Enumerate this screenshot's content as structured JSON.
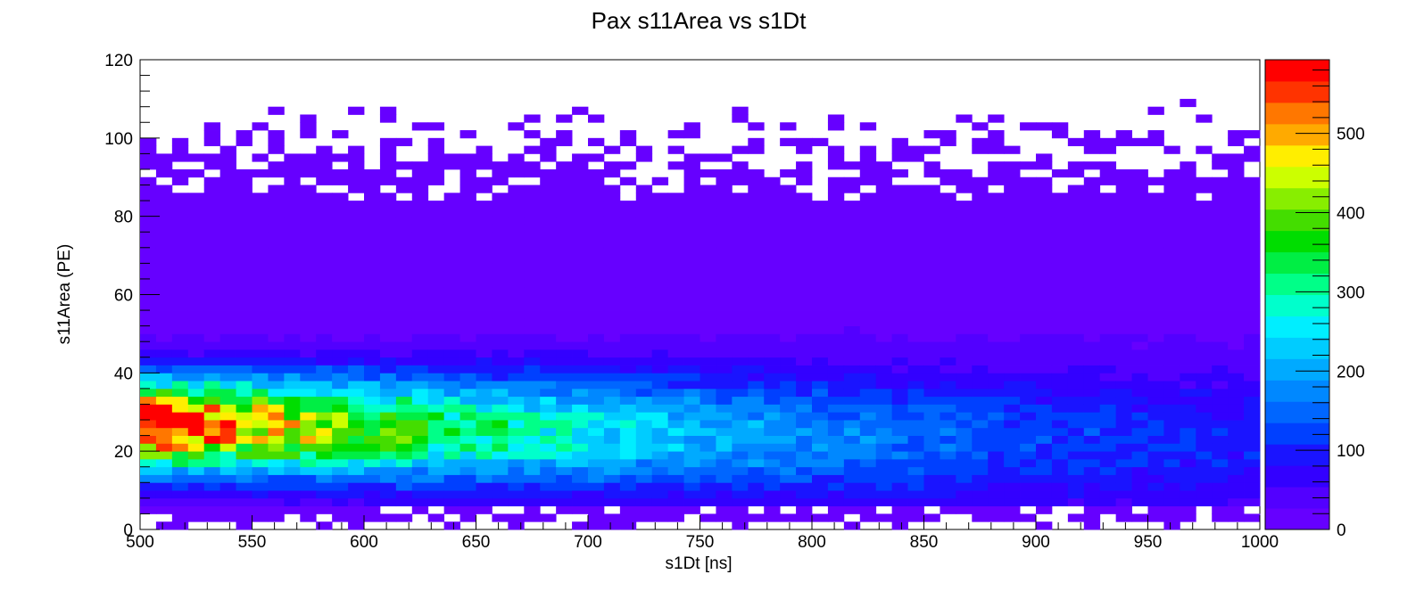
{
  "chart_data": {
    "type": "heatmap",
    "title": "Pax s11Area vs s1Dt",
    "xlabel": "s1Dt [ns]",
    "ylabel": "s11Area (PE)",
    "xlim": [
      500,
      1000
    ],
    "ylim": [
      0,
      120
    ],
    "x_ticks": [
      "500",
      "550",
      "600",
      "650",
      "700",
      "750",
      "800",
      "850",
      "900",
      "950",
      "1000"
    ],
    "y_ticks": [
      "0",
      "20",
      "40",
      "60",
      "80",
      "100",
      "120"
    ],
    "x_bins": 70,
    "y_bins": 60,
    "bin_width_x": 7.142857,
    "bin_width_y": 2,
    "z_range": [
      0,
      593
    ],
    "colorbar_ticks": [
      "0",
      "100",
      "200",
      "300",
      "400",
      "500"
    ],
    "colorbar_levels": 20,
    "palette": [
      "#6600ff",
      "#5200ff",
      "#3300ff",
      "#1a14ff",
      "#0040ff",
      "#0066ff",
      "#0088ff",
      "#00aaff",
      "#00ccff",
      "#00eeff",
      "#00ffcc",
      "#00ff88",
      "#00ee44",
      "#00dd00",
      "#44dd00",
      "#88ee00",
      "#ccff00",
      "#ffee00",
      "#ffaa00",
      "#ff7700",
      "#ff3300",
      "#ff0000"
    ],
    "grid": false,
    "legend": "colorbar-right",
    "band_ridge_description": "peak near s1Dt 500-510 ns at s11Area ~27 PE (~580 counts), decaying toward 1000 ns",
    "ridge_profile": [
      {
        "x": 505,
        "y": 27,
        "z": 580
      },
      {
        "x": 520,
        "y": 27,
        "z": 520
      },
      {
        "x": 550,
        "y": 28,
        "z": 420
      },
      {
        "x": 600,
        "y": 27,
        "z": 340
      },
      {
        "x": 650,
        "y": 27,
        "z": 270
      },
      {
        "x": 700,
        "y": 26,
        "z": 200
      },
      {
        "x": 750,
        "y": 26,
        "z": 155
      },
      {
        "x": 800,
        "y": 25,
        "z": 120
      },
      {
        "x": 850,
        "y": 24,
        "z": 95
      },
      {
        "x": 900,
        "y": 23,
        "z": 75
      },
      {
        "x": 950,
        "y": 22,
        "z": 60
      },
      {
        "x": 1000,
        "y": 22,
        "z": 50
      }
    ]
  }
}
